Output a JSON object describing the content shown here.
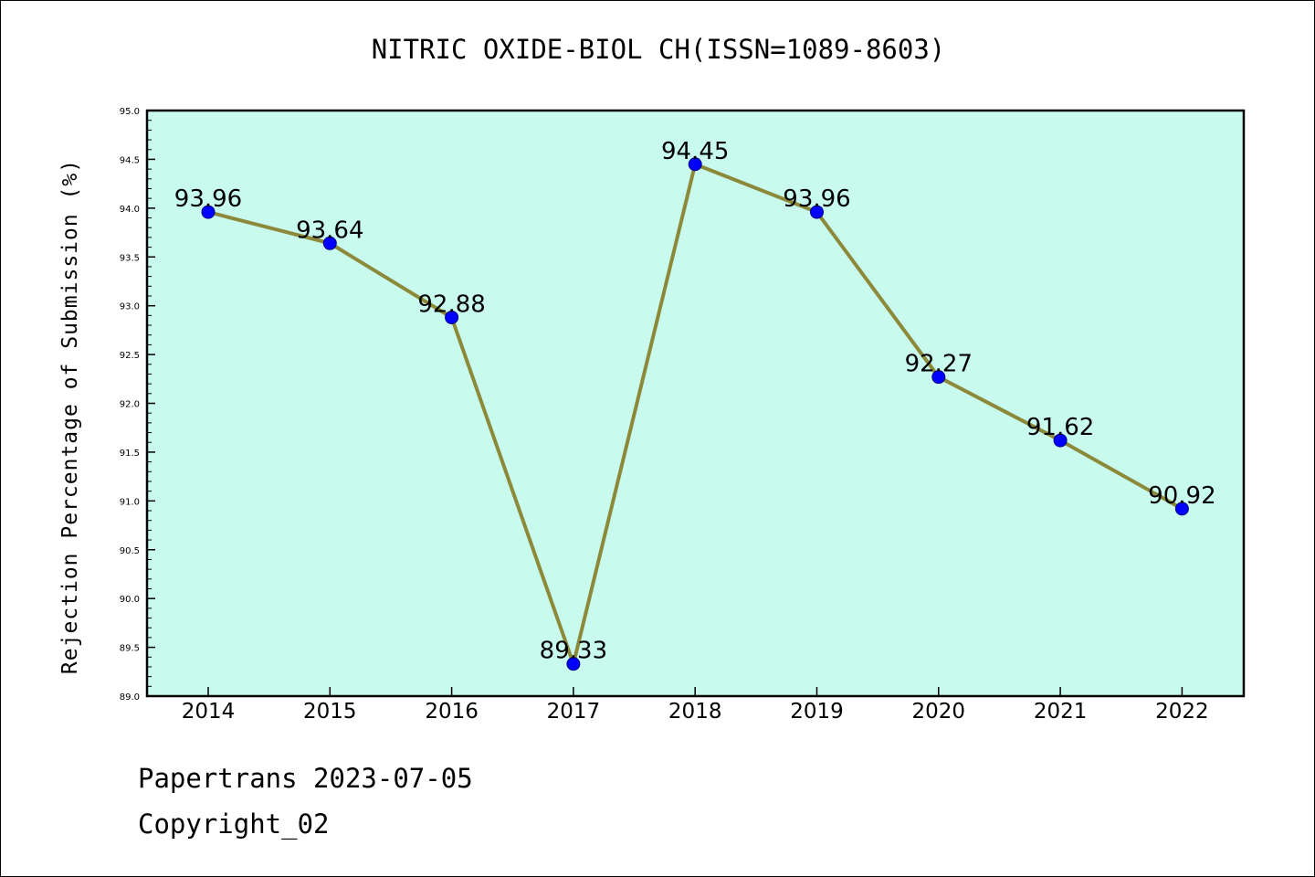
{
  "chart_data": {
    "type": "line",
    "title": "NITRIC OXIDE-BIOL CH(ISSN=1089-8603)",
    "xlabel": "",
    "ylabel": "Rejection Percentage of Submission (%)",
    "categories": [
      "2014",
      "2015",
      "2016",
      "2017",
      "2018",
      "2019",
      "2020",
      "2021",
      "2022"
    ],
    "values": [
      93.96,
      93.64,
      92.88,
      89.33,
      94.45,
      93.96,
      92.27,
      91.62,
      90.92
    ],
    "data_labels": [
      "93.96",
      "93.64",
      "92.88",
      "89.33",
      "94.45",
      "93.96",
      "92.27",
      "91.62",
      "90.92"
    ],
    "ylim": [
      89.0,
      95.0
    ],
    "y_ticks": [
      "89.0",
      "89.5",
      "90.0",
      "90.5",
      "91.0",
      "91.5",
      "92.0",
      "92.5",
      "93.0",
      "93.5",
      "94.0",
      "94.5",
      "95.0"
    ],
    "grid": false,
    "colors": {
      "plot_background": "#c8fbee",
      "line": "#8c8a3a",
      "marker": "#0000ff"
    }
  },
  "footer": {
    "date_text": "Papertrans 2023-07-05",
    "copyright_text": "Copyright_02"
  }
}
